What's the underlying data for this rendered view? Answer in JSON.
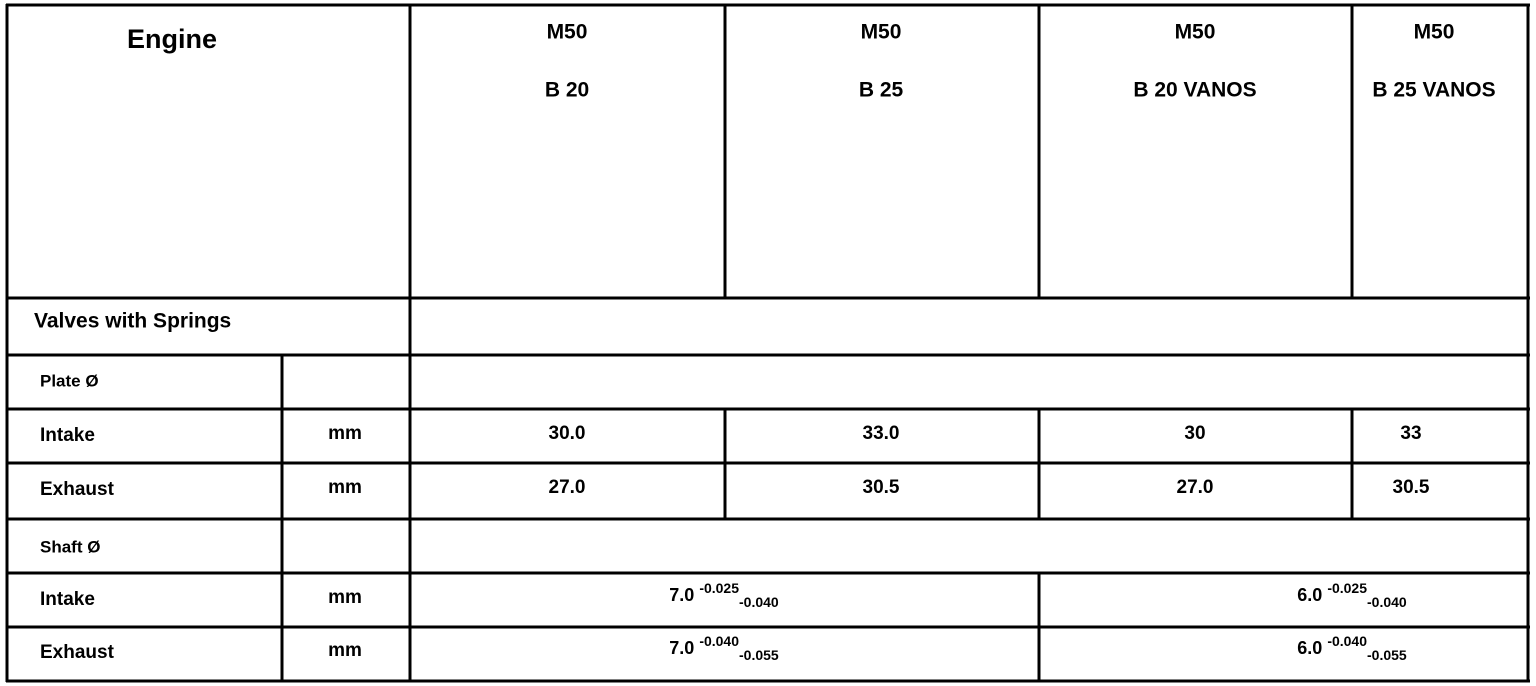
{
  "table": {
    "header": {
      "label": "Engine",
      "columns": [
        [
          "M50",
          "B 20"
        ],
        [
          "M50",
          "B 25"
        ],
        [
          "M50",
          "B 20 VANOS"
        ],
        [
          "M50",
          "B 25 VANOS"
        ]
      ]
    },
    "section": "Valves with Springs",
    "groups": [
      {
        "label": "Plate Ø",
        "rows": [
          {
            "label": "Intake",
            "unit": "mm",
            "cells": [
              "30.0",
              "33.0",
              "30",
              "33"
            ]
          },
          {
            "label": "Exhaust",
            "unit": "mm",
            "cells": [
              "27.0",
              "30.5",
              "27.0",
              "30.5"
            ]
          }
        ]
      },
      {
        "label": "Shaft Ø",
        "rows": [
          {
            "label": "Intake",
            "unit": "mm",
            "spans": [
              {
                "base": "7.0",
                "upper": "-0.025",
                "lower": "-0.040"
              },
              {
                "base": "6.0",
                "upper": "-0.025",
                "lower": "-0.040"
              }
            ]
          },
          {
            "label": "Exhaust",
            "unit": "mm",
            "spans": [
              {
                "base": "7.0",
                "upper": "-0.040",
                "lower": "-0.055"
              },
              {
                "base": "6.0",
                "upper": "-0.040",
                "lower": "-0.055"
              }
            ]
          }
        ]
      }
    ]
  }
}
